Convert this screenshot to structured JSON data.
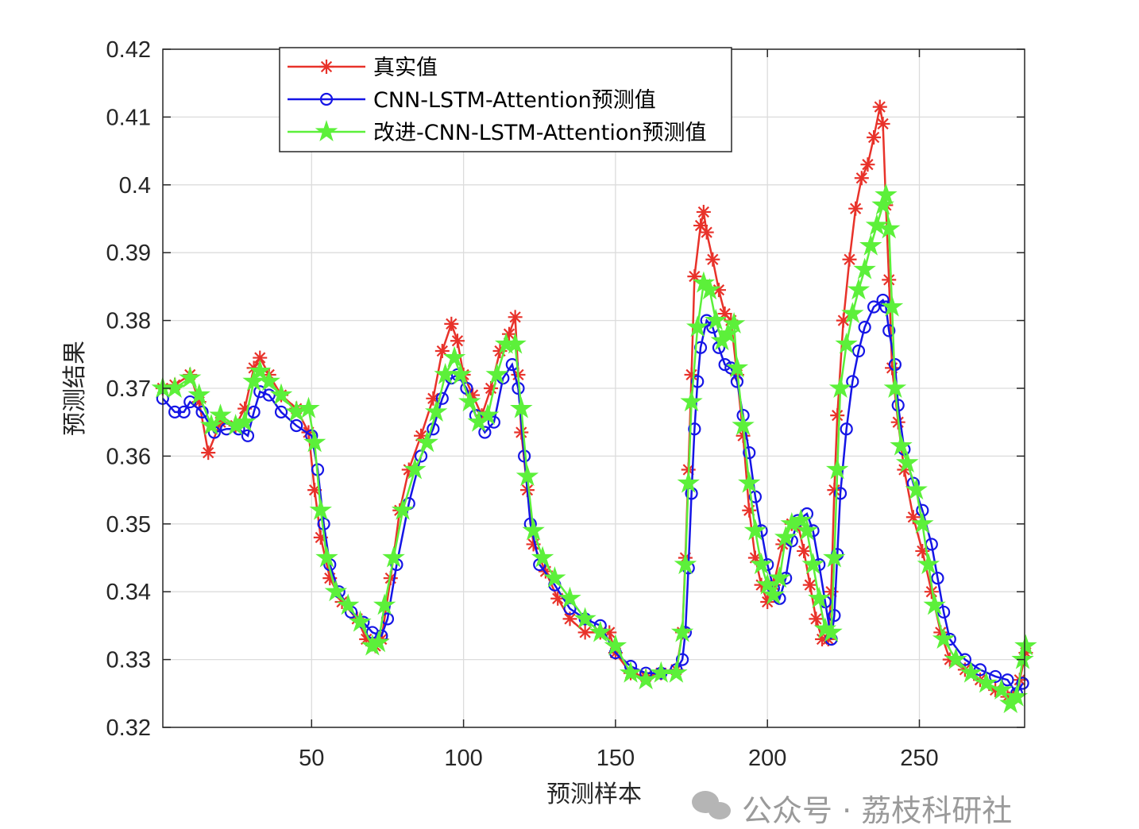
{
  "chart_data": {
    "type": "line",
    "title": "",
    "xlabel": "预测样本",
    "ylabel": "预测结果",
    "xlim": [
      1,
      285
    ],
    "ylim": [
      0.32,
      0.42
    ],
    "xticks": [
      50,
      100,
      150,
      200,
      250
    ],
    "yticks": [
      "0.32",
      "0.33",
      "0.34",
      "0.35",
      "0.36",
      "0.37",
      "0.38",
      "0.39",
      "0.4",
      "0.41",
      "0.42"
    ],
    "grid": true,
    "legend_position": "top-left",
    "series": [
      {
        "name": "真实值",
        "color": "#e8322a",
        "marker": "asterisk",
        "points": [
          [
            1,
            0.37
          ],
          [
            5,
            0.3705
          ],
          [
            10,
            0.372
          ],
          [
            13,
            0.368
          ],
          [
            16,
            0.3605
          ],
          [
            20,
            0.365
          ],
          [
            25,
            0.3645
          ],
          [
            28,
            0.367
          ],
          [
            31,
            0.373
          ],
          [
            33,
            0.3745
          ],
          [
            36,
            0.372
          ],
          [
            40,
            0.369
          ],
          [
            45,
            0.367
          ],
          [
            49,
            0.3635
          ],
          [
            51,
            0.355
          ],
          [
            53,
            0.348
          ],
          [
            56,
            0.342
          ],
          [
            60,
            0.3385
          ],
          [
            65,
            0.336
          ],
          [
            68,
            0.333
          ],
          [
            71,
            0.332
          ],
          [
            73,
            0.333
          ],
          [
            76,
            0.342
          ],
          [
            79,
            0.352
          ],
          [
            82,
            0.358
          ],
          [
            86,
            0.363
          ],
          [
            90,
            0.3685
          ],
          [
            93,
            0.3755
          ],
          [
            96,
            0.3795
          ],
          [
            98,
            0.377
          ],
          [
            100,
            0.372
          ],
          [
            103,
            0.369
          ],
          [
            106,
            0.366
          ],
          [
            109,
            0.37
          ],
          [
            112,
            0.3755
          ],
          [
            115,
            0.378
          ],
          [
            117,
            0.3805
          ],
          [
            118,
            0.372
          ],
          [
            119,
            0.3635
          ],
          [
            121,
            0.355
          ],
          [
            123,
            0.347
          ],
          [
            127,
            0.343
          ],
          [
            131,
            0.339
          ],
          [
            135,
            0.336
          ],
          [
            140,
            0.334
          ],
          [
            145,
            0.334
          ],
          [
            148,
            0.334
          ],
          [
            150,
            0.331
          ],
          [
            155,
            0.328
          ],
          [
            160,
            0.3275
          ],
          [
            165,
            0.328
          ],
          [
            170,
            0.3285
          ],
          [
            172,
            0.334
          ],
          [
            173,
            0.345
          ],
          [
            174,
            0.358
          ],
          [
            175,
            0.372
          ],
          [
            176,
            0.3865
          ],
          [
            178,
            0.394
          ],
          [
            179,
            0.396
          ],
          [
            180,
            0.393
          ],
          [
            182,
            0.389
          ],
          [
            184,
            0.3845
          ],
          [
            186,
            0.381
          ],
          [
            188,
            0.38
          ],
          [
            190,
            0.372
          ],
          [
            192,
            0.363
          ],
          [
            194,
            0.352
          ],
          [
            196,
            0.345
          ],
          [
            198,
            0.341
          ],
          [
            200,
            0.3385
          ],
          [
            202,
            0.341
          ],
          [
            205,
            0.347
          ],
          [
            208,
            0.35
          ],
          [
            210,
            0.35
          ],
          [
            212,
            0.346
          ],
          [
            214,
            0.341
          ],
          [
            216,
            0.336
          ],
          [
            218,
            0.333
          ],
          [
            220,
            0.333
          ],
          [
            221,
            0.34
          ],
          [
            222,
            0.355
          ],
          [
            223,
            0.366
          ],
          [
            225,
            0.38
          ],
          [
            227,
            0.389
          ],
          [
            229,
            0.3965
          ],
          [
            231,
            0.401
          ],
          [
            233,
            0.403
          ],
          [
            235,
            0.407
          ],
          [
            237,
            0.4115
          ],
          [
            238,
            0.409
          ],
          [
            239,
            0.397
          ],
          [
            240,
            0.386
          ],
          [
            241,
            0.373
          ],
          [
            243,
            0.365
          ],
          [
            245,
            0.358
          ],
          [
            248,
            0.351
          ],
          [
            251,
            0.346
          ],
          [
            254,
            0.34
          ],
          [
            257,
            0.334
          ],
          [
            260,
            0.33
          ],
          [
            265,
            0.3285
          ],
          [
            270,
            0.327
          ],
          [
            275,
            0.3255
          ],
          [
            279,
            0.3245
          ],
          [
            281,
            0.3245
          ],
          [
            283,
            0.327
          ],
          [
            285,
            0.331
          ]
        ]
      },
      {
        "name": "CNN-LSTM-Attention预测值",
        "color": "#1515e6",
        "marker": "circle",
        "points": [
          [
            1,
            0.3685
          ],
          [
            5,
            0.3665
          ],
          [
            8,
            0.3665
          ],
          [
            10,
            0.368
          ],
          [
            14,
            0.3665
          ],
          [
            18,
            0.3635
          ],
          [
            22,
            0.364
          ],
          [
            26,
            0.364
          ],
          [
            29,
            0.363
          ],
          [
            31,
            0.3665
          ],
          [
            33,
            0.3695
          ],
          [
            36,
            0.369
          ],
          [
            40,
            0.3665
          ],
          [
            45,
            0.3645
          ],
          [
            50,
            0.363
          ],
          [
            52,
            0.358
          ],
          [
            54,
            0.35
          ],
          [
            56,
            0.344
          ],
          [
            59,
            0.34
          ],
          [
            63,
            0.337
          ],
          [
            67,
            0.3355
          ],
          [
            70,
            0.334
          ],
          [
            73,
            0.3335
          ],
          [
            75,
            0.336
          ],
          [
            78,
            0.344
          ],
          [
            82,
            0.353
          ],
          [
            86,
            0.36
          ],
          [
            90,
            0.364
          ],
          [
            93,
            0.3685
          ],
          [
            96,
            0.3715
          ],
          [
            98,
            0.372
          ],
          [
            101,
            0.37
          ],
          [
            104,
            0.366
          ],
          [
            107,
            0.3635
          ],
          [
            110,
            0.365
          ],
          [
            113,
            0.3715
          ],
          [
            116,
            0.3735
          ],
          [
            118,
            0.37
          ],
          [
            120,
            0.36
          ],
          [
            122,
            0.35
          ],
          [
            125,
            0.344
          ],
          [
            130,
            0.341
          ],
          [
            135,
            0.3375
          ],
          [
            140,
            0.336
          ],
          [
            145,
            0.335
          ],
          [
            150,
            0.331
          ],
          [
            155,
            0.329
          ],
          [
            160,
            0.328
          ],
          [
            165,
            0.328
          ],
          [
            170,
            0.3285
          ],
          [
            172,
            0.33
          ],
          [
            173,
            0.334
          ],
          [
            174,
            0.3435
          ],
          [
            175,
            0.3545
          ],
          [
            176,
            0.364
          ],
          [
            177,
            0.371
          ],
          [
            178,
            0.376
          ],
          [
            180,
            0.38
          ],
          [
            182,
            0.379
          ],
          [
            184,
            0.376
          ],
          [
            186,
            0.3735
          ],
          [
            188,
            0.373
          ],
          [
            190,
            0.371
          ],
          [
            192,
            0.366
          ],
          [
            194,
            0.3605
          ],
          [
            196,
            0.354
          ],
          [
            198,
            0.349
          ],
          [
            200,
            0.344
          ],
          [
            202,
            0.3405
          ],
          [
            204,
            0.339
          ],
          [
            206,
            0.342
          ],
          [
            208,
            0.3475
          ],
          [
            210,
            0.3505
          ],
          [
            213,
            0.3515
          ],
          [
            215,
            0.349
          ],
          [
            217,
            0.344
          ],
          [
            219,
            0.3385
          ],
          [
            221,
            0.333
          ],
          [
            222,
            0.3365
          ],
          [
            223,
            0.3455
          ],
          [
            224,
            0.3545
          ],
          [
            226,
            0.364
          ],
          [
            228,
            0.371
          ],
          [
            230,
            0.3755
          ],
          [
            232,
            0.379
          ],
          [
            235,
            0.382
          ],
          [
            238,
            0.383
          ],
          [
            239,
            0.382
          ],
          [
            240,
            0.3785
          ],
          [
            242,
            0.3735
          ],
          [
            243,
            0.3675
          ],
          [
            245,
            0.361
          ],
          [
            248,
            0.356
          ],
          [
            251,
            0.352
          ],
          [
            254,
            0.347
          ],
          [
            256,
            0.342
          ],
          [
            258,
            0.337
          ],
          [
            260,
            0.333
          ],
          [
            265,
            0.33
          ],
          [
            270,
            0.3285
          ],
          [
            275,
            0.3275
          ],
          [
            279,
            0.327
          ],
          [
            282,
            0.325
          ],
          [
            284,
            0.3265
          ]
        ]
      },
      {
        "name": "改进-CNN-LSTM-Attention预测值",
        "color": "#5cf03a",
        "marker": "star",
        "points": [
          [
            1,
            0.37
          ],
          [
            5,
            0.37
          ],
          [
            10,
            0.3715
          ],
          [
            13,
            0.369
          ],
          [
            17,
            0.3645
          ],
          [
            20,
            0.366
          ],
          [
            25,
            0.3645
          ],
          [
            28,
            0.365
          ],
          [
            31,
            0.371
          ],
          [
            33,
            0.3725
          ],
          [
            36,
            0.371
          ],
          [
            40,
            0.369
          ],
          [
            45,
            0.3665
          ],
          [
            49,
            0.367
          ],
          [
            51,
            0.362
          ],
          [
            53,
            0.352
          ],
          [
            55,
            0.345
          ],
          [
            58,
            0.34
          ],
          [
            62,
            0.338
          ],
          [
            66,
            0.3355
          ],
          [
            70,
            0.332
          ],
          [
            72,
            0.3325
          ],
          [
            74,
            0.338
          ],
          [
            77,
            0.345
          ],
          [
            80,
            0.352
          ],
          [
            84,
            0.358
          ],
          [
            88,
            0.362
          ],
          [
            91,
            0.3665
          ],
          [
            94,
            0.372
          ],
          [
            97,
            0.3745
          ],
          [
            99,
            0.372
          ],
          [
            102,
            0.368
          ],
          [
            105,
            0.365
          ],
          [
            108,
            0.366
          ],
          [
            111,
            0.372
          ],
          [
            114,
            0.3765
          ],
          [
            117,
            0.3765
          ],
          [
            119,
            0.367
          ],
          [
            121,
            0.357
          ],
          [
            123,
            0.349
          ],
          [
            126,
            0.345
          ],
          [
            130,
            0.342
          ],
          [
            135,
            0.339
          ],
          [
            140,
            0.336
          ],
          [
            145,
            0.334
          ],
          [
            150,
            0.332
          ],
          [
            155,
            0.328
          ],
          [
            160,
            0.327
          ],
          [
            165,
            0.328
          ],
          [
            170,
            0.328
          ],
          [
            172,
            0.334
          ],
          [
            173,
            0.344
          ],
          [
            174,
            0.356
          ],
          [
            175,
            0.368
          ],
          [
            177,
            0.379
          ],
          [
            179,
            0.3855
          ],
          [
            181,
            0.3845
          ],
          [
            183,
            0.38
          ],
          [
            185,
            0.377
          ],
          [
            187,
            0.378
          ],
          [
            189,
            0.3795
          ],
          [
            190,
            0.373
          ],
          [
            192,
            0.3645
          ],
          [
            194,
            0.356
          ],
          [
            196,
            0.349
          ],
          [
            198,
            0.344
          ],
          [
            200,
            0.341
          ],
          [
            202,
            0.3395
          ],
          [
            204,
            0.342
          ],
          [
            206,
            0.348
          ],
          [
            208,
            0.35
          ],
          [
            211,
            0.3505
          ],
          [
            213,
            0.349
          ],
          [
            215,
            0.344
          ],
          [
            217,
            0.339
          ],
          [
            219,
            0.3345
          ],
          [
            221,
            0.334
          ],
          [
            222,
            0.345
          ],
          [
            223,
            0.358
          ],
          [
            224,
            0.37
          ],
          [
            226,
            0.3765
          ],
          [
            228,
            0.381
          ],
          [
            230,
            0.3845
          ],
          [
            232,
            0.3875
          ],
          [
            234,
            0.391
          ],
          [
            236,
            0.394
          ],
          [
            238,
            0.397
          ],
          [
            239,
            0.3985
          ],
          [
            240,
            0.3935
          ],
          [
            241,
            0.382
          ],
          [
            242,
            0.37
          ],
          [
            244,
            0.3615
          ],
          [
            246,
            0.359
          ],
          [
            249,
            0.355
          ],
          [
            251,
            0.35
          ],
          [
            253,
            0.344
          ],
          [
            255,
            0.338
          ],
          [
            258,
            0.333
          ],
          [
            262,
            0.33
          ],
          [
            267,
            0.328
          ],
          [
            272,
            0.3265
          ],
          [
            277,
            0.3255
          ],
          [
            280,
            0.3235
          ],
          [
            282,
            0.3245
          ],
          [
            284,
            0.33
          ],
          [
            285,
            0.332
          ]
        ]
      }
    ]
  },
  "watermark": "公众号 · 荔枝科研社"
}
